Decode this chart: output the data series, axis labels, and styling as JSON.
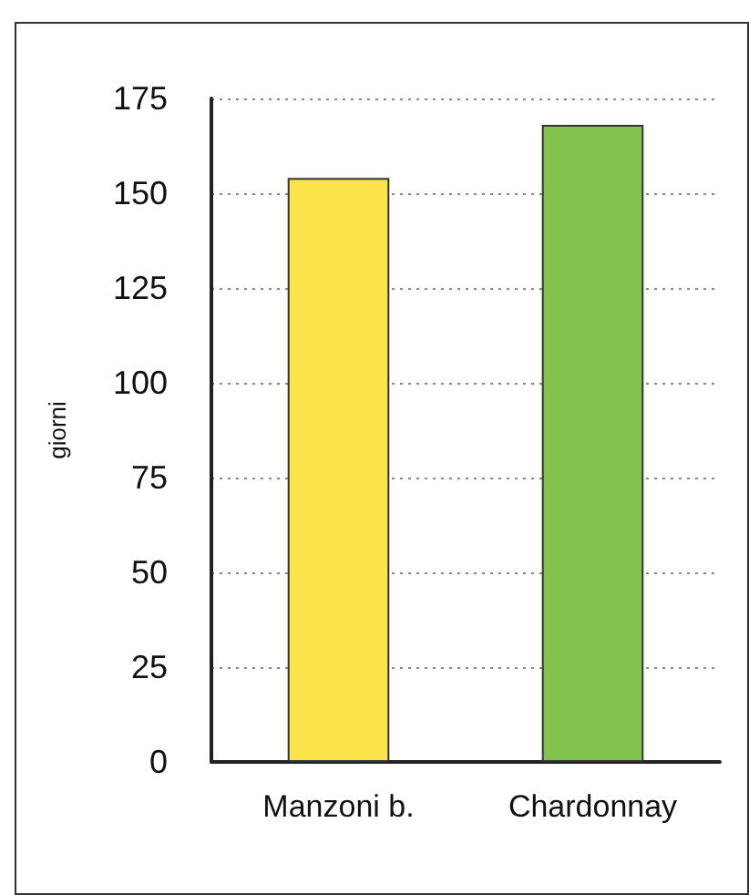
{
  "chart_data": {
    "type": "bar",
    "ylabel": "giorni",
    "categories": [
      "Manzoni b.",
      "Chardonnay"
    ],
    "colors": [
      "#fbe44a",
      "#82c44e"
    ],
    "values": [
      154,
      168
    ],
    "ylim": [
      0,
      175
    ],
    "yticks": [
      0,
      25,
      50,
      75,
      100,
      125,
      150,
      175
    ],
    "grid": "y"
  }
}
